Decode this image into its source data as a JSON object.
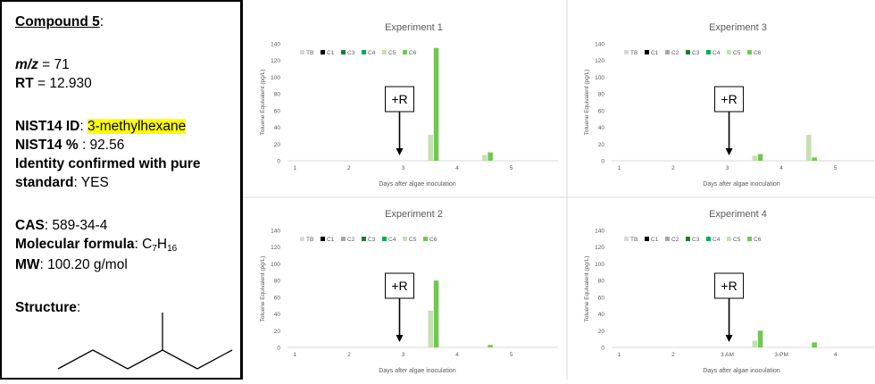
{
  "info": {
    "compound_label": "Compound 5",
    "mz_label": "m/z",
    "mz_value": " = 71",
    "rt_label": "RT",
    "rt_value": " = 12.930",
    "nist_id_label": "NIST14 ID",
    "nist_id_value": "3-methylhexane",
    "nist_pct_label": "NIST14 %",
    "nist_pct_value": " : 92.56",
    "identity_label_1": "Identity confirmed with pure",
    "identity_label_2": "standard",
    "identity_value": ": YES",
    "cas_label": "CAS",
    "cas_value": ": 589-34-4",
    "formula_label": "Molecular formula",
    "formula_prefix": ": C",
    "formula_c": "7",
    "formula_h": "H",
    "formula_h_count": "16",
    "mw_label": "MW",
    "mw_value": ": 100.20 g/mol",
    "structure_label": "Structure",
    "colon": ":",
    "highlight_color": "#ffff00"
  },
  "chart_data": [
    {
      "type": "bar",
      "title": "Experiment 1",
      "xlabel": "Days after algae inoculation",
      "ylabel": "Toluene Equivalent (pg/L)",
      "ylim": [
        0,
        140
      ],
      "yticks": [
        0,
        20,
        40,
        60,
        80,
        100,
        120,
        140
      ],
      "categories": [
        "1",
        "2",
        "3",
        "4",
        "5"
      ],
      "annotation": "+R",
      "annotation_x": 2.5,
      "legend": "top-left",
      "grid": false,
      "series": [
        {
          "name": "TB",
          "color": "#d9d9d9",
          "values": [
            null,
            null,
            null,
            null,
            null
          ]
        },
        {
          "name": "C1",
          "color": "#000000",
          "values": [
            null,
            null,
            null,
            null,
            null
          ]
        },
        {
          "name": "C3",
          "color": "#1e7b34",
          "values": [
            null,
            null,
            null,
            null,
            null
          ]
        },
        {
          "name": "C4",
          "color": "#00b050",
          "values": [
            null,
            null,
            null,
            null,
            null
          ]
        },
        {
          "name": "C5",
          "color": "#c5e0b4",
          "values": [
            null,
            null,
            31,
            7,
            null
          ]
        },
        {
          "name": "C6",
          "color": "#70c850",
          "values": [
            null,
            null,
            135,
            10,
            null
          ]
        }
      ]
    },
    {
      "type": "bar",
      "title": "Experiment 3",
      "xlabel": "Days after algae inoculation",
      "ylabel": "Toluene Equivalent (pg/L)",
      "ylim": [
        0,
        140
      ],
      "yticks": [
        0,
        20,
        40,
        60,
        80,
        100,
        120,
        140
      ],
      "categories": [
        "1",
        "2",
        "3",
        "4",
        "5"
      ],
      "annotation": "+R",
      "annotation_x": 2.6,
      "legend": "top-left",
      "grid": false,
      "series": [
        {
          "name": "TB",
          "color": "#d9d9d9",
          "values": [
            null,
            null,
            null,
            null,
            null
          ]
        },
        {
          "name": "C1",
          "color": "#000000",
          "values": [
            null,
            null,
            null,
            null,
            null
          ]
        },
        {
          "name": "C2",
          "color": "#a6a6a6",
          "values": [
            null,
            null,
            null,
            null,
            null
          ]
        },
        {
          "name": "C3",
          "color": "#1e7b34",
          "values": [
            null,
            null,
            null,
            null,
            null
          ]
        },
        {
          "name": "C4",
          "color": "#00b050",
          "values": [
            null,
            null,
            null,
            null,
            null
          ]
        },
        {
          "name": "C5",
          "color": "#c5e0b4",
          "values": [
            null,
            null,
            6,
            31,
            null
          ]
        },
        {
          "name": "C6",
          "color": "#70c850",
          "values": [
            null,
            null,
            8,
            4,
            null
          ]
        }
      ]
    },
    {
      "type": "bar",
      "title": "Experiment 2",
      "xlabel": "Days after algae inoculation",
      "ylabel": "Toluene Equivalent (pg/L)",
      "ylim": [
        0,
        140
      ],
      "yticks": [
        0,
        20,
        40,
        60,
        80,
        100,
        120,
        140
      ],
      "categories": [
        "1",
        "2",
        "3",
        "4",
        "5"
      ],
      "annotation": "+R",
      "annotation_x": 2.5,
      "legend": "top-left",
      "grid": false,
      "series": [
        {
          "name": "TB",
          "color": "#d9d9d9",
          "values": [
            null,
            null,
            null,
            null,
            null
          ]
        },
        {
          "name": "C1",
          "color": "#000000",
          "values": [
            null,
            null,
            null,
            null,
            null
          ]
        },
        {
          "name": "C2",
          "color": "#a6a6a6",
          "values": [
            null,
            null,
            null,
            null,
            null
          ]
        },
        {
          "name": "C3",
          "color": "#1e7b34",
          "values": [
            null,
            null,
            null,
            null,
            null
          ]
        },
        {
          "name": "C4",
          "color": "#00b050",
          "values": [
            null,
            null,
            null,
            null,
            null
          ]
        },
        {
          "name": "C5",
          "color": "#c5e0b4",
          "values": [
            null,
            null,
            44,
            null,
            null
          ]
        },
        {
          "name": "C6",
          "color": "#70c850",
          "values": [
            null,
            null,
            80,
            3,
            null
          ]
        }
      ]
    },
    {
      "type": "bar",
      "title": "Experiment 4",
      "xlabel": "Days after algae inoculation",
      "ylabel": "Toluene Equivalent (pg/L)",
      "ylim": [
        0,
        140
      ],
      "yticks": [
        0,
        20,
        40,
        60,
        80,
        100,
        120,
        140
      ],
      "categories": [
        "1",
        "2",
        "3 AM",
        "3-PM",
        "4"
      ],
      "annotation": "+R",
      "annotation_x": 2.6,
      "legend": "top-left",
      "grid": false,
      "series": [
        {
          "name": "TB",
          "color": "#d9d9d9",
          "values": [
            null,
            null,
            null,
            null,
            null
          ]
        },
        {
          "name": "C1",
          "color": "#000000",
          "values": [
            null,
            null,
            null,
            null,
            null
          ]
        },
        {
          "name": "C2",
          "color": "#a6a6a6",
          "values": [
            null,
            null,
            null,
            null,
            null
          ]
        },
        {
          "name": "C3",
          "color": "#1e7b34",
          "values": [
            null,
            null,
            null,
            null,
            null
          ]
        },
        {
          "name": "C4",
          "color": "#00b050",
          "values": [
            null,
            null,
            null,
            null,
            null
          ]
        },
        {
          "name": "C5",
          "color": "#c5e0b4",
          "values": [
            null,
            null,
            8,
            null,
            null
          ]
        },
        {
          "name": "C6",
          "color": "#70c850",
          "values": [
            null,
            null,
            20,
            6,
            null
          ]
        }
      ]
    }
  ]
}
